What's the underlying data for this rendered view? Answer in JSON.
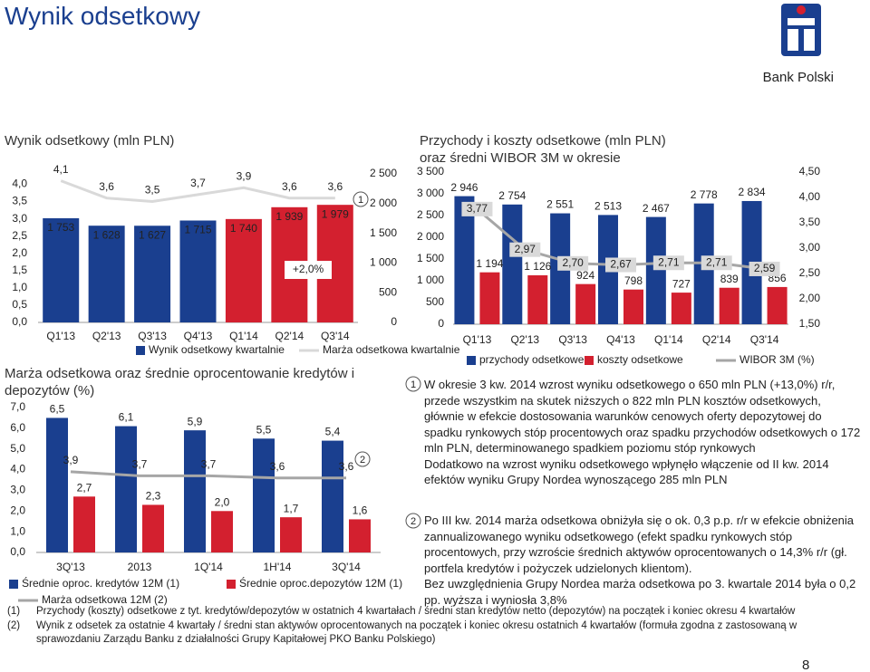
{
  "header": {
    "title": "Wynik odsetkowy",
    "brand": "Bank Polski",
    "page": "8"
  },
  "chart_data": [
    {
      "type": "combo",
      "title": "Wynik odsetkowy (mln PLN)",
      "annotation": "+2,0%",
      "marker": "1",
      "categories": [
        "Q1'13",
        "Q2'13",
        "Q3'13",
        "Q4'13",
        "Q1'14",
        "Q2'14",
        "Q3'14"
      ],
      "series": [
        {
          "name": "Wynik odsetkowy kwartalnie",
          "kind": "bar",
          "axis": "y2",
          "color": "#1a3f8f",
          "colors": [
            "#1a3f8f",
            "#1a3f8f",
            "#1a3f8f",
            "#1a3f8f",
            "#d3202f",
            "#d3202f",
            "#d3202f"
          ],
          "values": [
            1753,
            1628,
            1627,
            1715,
            1740,
            1939,
            1979
          ],
          "value_labels": [
            "1 753",
            "1 628",
            "1 627",
            "1 715",
            "1 740",
            "1 939",
            "1 979"
          ]
        },
        {
          "name": "Marża odsetkowa kwartalnie",
          "kind": "line",
          "color": "#d9d9d9",
          "values": [
            4.1,
            3.6,
            3.5,
            3.7,
            3.9,
            3.6,
            3.6
          ],
          "value_labels": [
            "4,1",
            "3,6",
            "3,5",
            "3,7",
            "3,9",
            "3,6",
            "3,6"
          ]
        }
      ],
      "ylim": [
        0,
        4.3
      ],
      "yticks": [
        {
          "value": 0,
          "label": "0,0"
        },
        {
          "value": 0.5,
          "label": "0,5"
        },
        {
          "value": 1,
          "label": "1,0"
        },
        {
          "value": 1.5,
          "label": "1,5"
        },
        {
          "value": 2,
          "label": "2,0"
        },
        {
          "value": 2.5,
          "label": "2,5"
        },
        {
          "value": 3,
          "label": "3,0"
        },
        {
          "value": 3.5,
          "label": "3,5"
        },
        {
          "value": 4,
          "label": "4,0"
        }
      ],
      "y2lim": [
        0,
        2500
      ],
      "y2ticks": [
        0,
        500,
        {
          "value": 1000,
          "label": "1 000"
        },
        {
          "value": 1500,
          "label": "1 500"
        },
        {
          "value": 2000,
          "label": "2 000"
        },
        {
          "value": 2500,
          "label": "2 500"
        }
      ]
    },
    {
      "type": "combo",
      "title": "Marża odsetkowa oraz średnie oprocentowanie kredytów i depozytów (%)",
      "marker": "2",
      "categories": [
        "3Q'13",
        "2013",
        "1Q'14",
        "1H'14",
        "3Q'14"
      ],
      "series": [
        {
          "name": "Średnie oproc. kredytów 12M (1)",
          "kind": "bar",
          "color": "#1a3f8f",
          "values": [
            6.5,
            6.1,
            5.9,
            5.5,
            5.4
          ],
          "value_labels": [
            "6,5",
            "6,1",
            "5,9",
            "5,5",
            "5,4"
          ]
        },
        {
          "name": "Średnie oproc.depozytów 12M (1)",
          "kind": "bar",
          "color": "#d3202f",
          "values": [
            2.7,
            2.3,
            2.0,
            1.7,
            1.6
          ],
          "value_labels": [
            "2,7",
            "2,3",
            "2,0",
            "1,7",
            "1,6"
          ]
        },
        {
          "name": "Marża odsetkowa 12M (2)",
          "kind": "line",
          "color": "#a6a6a6",
          "values": [
            3.9,
            3.7,
            3.7,
            3.6,
            3.6
          ],
          "value_labels": [
            "3,9",
            "3,7",
            "3,7",
            "3,6",
            "3,6"
          ]
        }
      ],
      "ylim": [
        0,
        7
      ],
      "yticks": [
        {
          "value": 0,
          "label": "0,0"
        },
        {
          "value": 1,
          "label": "1,0"
        },
        {
          "value": 2,
          "label": "2,0"
        },
        {
          "value": 3,
          "label": "3,0"
        },
        {
          "value": 4,
          "label": "4,0"
        },
        {
          "value": 5,
          "label": "5,0"
        },
        {
          "value": 6,
          "label": "6,0"
        },
        {
          "value": 7,
          "label": "7,0"
        }
      ]
    },
    {
      "type": "combo",
      "title": "Przychody i koszty odsetkowe (mln PLN) oraz średni WIBOR 3M w okresie",
      "categories": [
        "Q1'13",
        "Q2'13",
        "Q3'13",
        "Q4'13",
        "Q1'14",
        "Q2'14",
        "Q3'14"
      ],
      "series": [
        {
          "name": "przychody odsetkowe",
          "kind": "bar",
          "color": "#1a3f8f",
          "values": [
            2946,
            2754,
            2551,
            2513,
            2467,
            2778,
            2834
          ],
          "value_labels": [
            "2 946",
            "2 754",
            "2 551",
            "2 513",
            "2 467",
            "2 778",
            "2 834"
          ]
        },
        {
          "name": "koszty odsetkowe",
          "kind": "bar",
          "color": "#d3202f",
          "values": [
            1194,
            1126,
            924,
            798,
            727,
            839,
            856
          ],
          "value_labels": [
            "1 194",
            "1 126",
            "924",
            "798",
            "727",
            "839",
            "856"
          ]
        },
        {
          "name": "WIBOR 3M (%)",
          "kind": "line",
          "axis": "y2",
          "color": "#a6a6a6",
          "values": [
            3.77,
            2.97,
            2.7,
            2.67,
            2.71,
            2.71,
            2.59
          ],
          "value_labels": [
            "3,77",
            "2,97",
            "2,70",
            "2,67",
            "2,71",
            "2,71",
            "2,59"
          ]
        }
      ],
      "ylim": [
        0,
        3500
      ],
      "yticks": [
        0,
        500,
        {
          "value": 1000,
          "label": "1 000"
        },
        {
          "value": 1500,
          "label": "1 500"
        },
        {
          "value": 2000,
          "label": "2 000"
        },
        {
          "value": 2500,
          "label": "2 500"
        },
        {
          "value": 3000,
          "label": "3 000"
        },
        {
          "value": 3500,
          "label": "3 500"
        }
      ],
      "y2lim": [
        1.5,
        4.5
      ],
      "y2ticks": [
        {
          "value": 1.5,
          "label": "1,50"
        },
        {
          "value": 2,
          "label": "2,00"
        },
        {
          "value": 2.5,
          "label": "2,50"
        },
        {
          "value": 3,
          "label": "3,00"
        },
        {
          "value": 3.5,
          "label": "3,50"
        },
        {
          "value": 4,
          "label": "4,00"
        },
        {
          "value": 4.5,
          "label": "4,50"
        }
      ]
    }
  ],
  "notes": [
    {
      "marker": "1",
      "paragraphs": [
        "W okresie 3 kw. 2014 wzrost wyniku odsetkowego o 650 mln PLN (+13,0%) r/r, przede wszystkim na skutek niższych o 822 mln PLN kosztów odsetkowych, głównie w efekcie dostosowania warunków cenowych oferty depozytowej do spadku rynkowych stóp procentowych oraz spadku przychodów odsetkowych o 172 mln PLN, determinowanego spadkiem poziomu stóp rynkowych",
        "Dodatkowo na wzrost wyniku odsetkowego wpłynęło włączenie od II kw. 2014 efektów wyniku Grupy Nordea wynoszącego 285 mln PLN"
      ]
    },
    {
      "marker": "2",
      "paragraphs": [
        "Po III kw. 2014  marża odsetkowa obniżyła się o ok. 0,3 p.p. r/r w efekcie obniżenia zannualizowanego wyniku odsetkowego (efekt spadku rynkowych stóp procentowych, przy wzroście średnich aktywów oprocentowanych o 14,3% r/r (gł. portfela kredytów i pożyczek udzielonych klientom).",
        "Bez uwzględnienia Grupy Nordea marża odsetkowa po 3. kwartale 2014 była o 0,2 pp. wyższa i wyniosła 3,8%"
      ]
    }
  ],
  "footnotes": [
    {
      "marker": "(1)",
      "text": "Przychody (koszty) odsetkowe z tyt. kredytów/depozytów w ostatnich 4 kwartałach / średni stan kredytów netto (depozytów) na początek i koniec okresu 4 kwartałów"
    },
    {
      "marker": "(2)",
      "text": "Wynik z odsetek za ostatnie 4 kwartały / średni stan aktywów oprocentowanych na początek i koniec okresu ostatnich 4 kwartałów (formuła zgodna z zastosowaną w sprawozdaniu Zarządu Banku z działalności Grupy Kapitałowej PKO Banku Polskiego)"
    }
  ]
}
